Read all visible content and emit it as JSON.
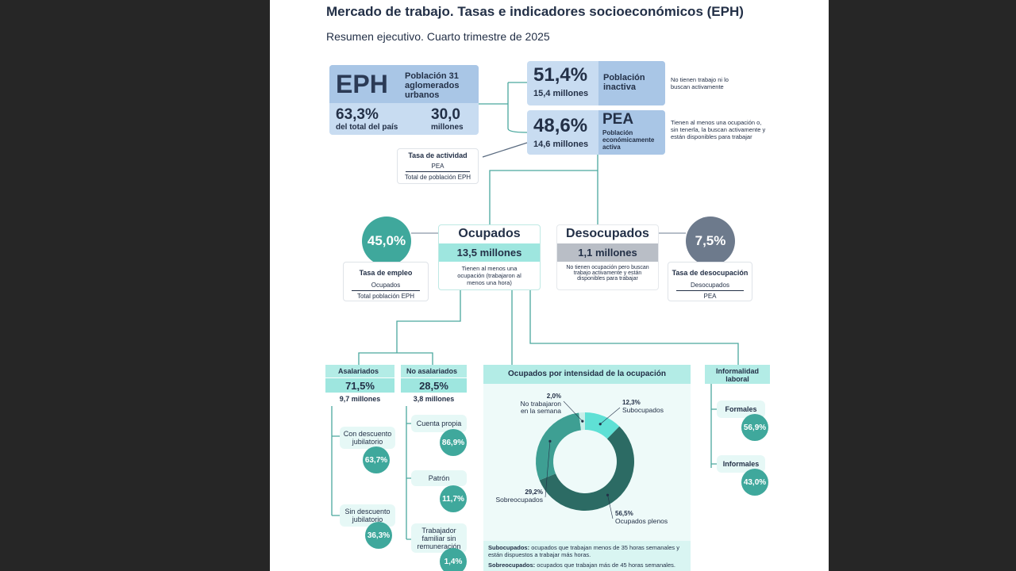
{
  "header": {
    "title": "Mercado de trabajo. Tasas e indicadores socioeconómicos (EPH)",
    "subtitle": "Resumen ejecutivo. Cuarto trimestre de 2025"
  },
  "eph": {
    "logo": "EPH",
    "desc": "Población 31 aglomerados urbanos",
    "pct": "63,3%",
    "pct_label": "del total del país",
    "total": "30,0",
    "total_label": "millones"
  },
  "inactiva": {
    "pct": "51,4%",
    "count": "15,4 millones",
    "label": "Población inactiva",
    "note": "No tienen trabajo ni lo buscan activamente"
  },
  "pea": {
    "pct": "48,6%",
    "count": "14,6 millones",
    "abbr": "PEA",
    "label": "Población económicamente activa",
    "note": "Tienen al menos una ocupación o, sin tenerla, la buscan activamente y están disponibles para trabajar"
  },
  "tasa_actividad": {
    "title": "Tasa de actividad",
    "num": "PEA",
    "den": "Total de población EPH"
  },
  "ocupados": {
    "title": "Ocupados",
    "count": "13,5 millones",
    "note": "Tienen al menos una ocupación (trabajaron al menos una hora)"
  },
  "desocupados": {
    "title": "Desocupados",
    "count": "1,1 millones",
    "note": "No tienen ocupación pero buscan trabajo activamente y están disponibles para trabajar"
  },
  "tasa_empleo": {
    "value": "45,0%",
    "title": "Tasa de empleo",
    "num": "Ocupados",
    "den": "Total población EPH"
  },
  "tasa_desocupacion": {
    "value": "7,5%",
    "title": "Tasa de desocupación",
    "num": "Desocupados",
    "den": "PEA"
  },
  "asalariados": {
    "title": "Asalariados",
    "pct": "71,5%",
    "count": "9,7 millones",
    "items": [
      {
        "label": "Con descuento jubilatorio",
        "value": "63,7%"
      },
      {
        "label": "Sin descuento jubilatorio",
        "value": "36,3%"
      }
    ]
  },
  "no_asalariados": {
    "title": "No asalariados",
    "pct": "28,5%",
    "count": "3,8 millones",
    "items": [
      {
        "label": "Cuenta propia",
        "value": "86,9%"
      },
      {
        "label": "Patrón",
        "value": "11,7%"
      },
      {
        "label": "Trabajador familiar sin remuneración",
        "value": "1,4%"
      }
    ]
  },
  "intensidad": {
    "title": "Ocupados por intensidad de la ocupación",
    "chart": {
      "type": "pie",
      "categories": [
        "Subocupados",
        "Ocupados plenos",
        "Sobreocupados",
        "No trabajaron en la semana"
      ],
      "values": [
        12.3,
        56.5,
        29.2,
        2.0
      ],
      "value_labels": [
        "12,3%",
        "56,5%",
        "29,2%",
        "2,0%"
      ],
      "colors": [
        "#5fe0d5",
        "#2c6b64",
        "#3e9f93",
        "#c8efea"
      ]
    },
    "notes": [
      {
        "term": "Subocupados:",
        "text": "ocupados que trabajan menos de 35 horas semanales y están dispuestos a trabajar más horas."
      },
      {
        "term": "Sobreocupados:",
        "text": "ocupados que trabajan más de 45 horas semanales."
      }
    ]
  },
  "informalidad": {
    "title": "Informalidad laboral",
    "items": [
      {
        "label": "Formales",
        "value": "56,9%"
      },
      {
        "label": "Informales",
        "value": "43,0%"
      }
    ]
  }
}
